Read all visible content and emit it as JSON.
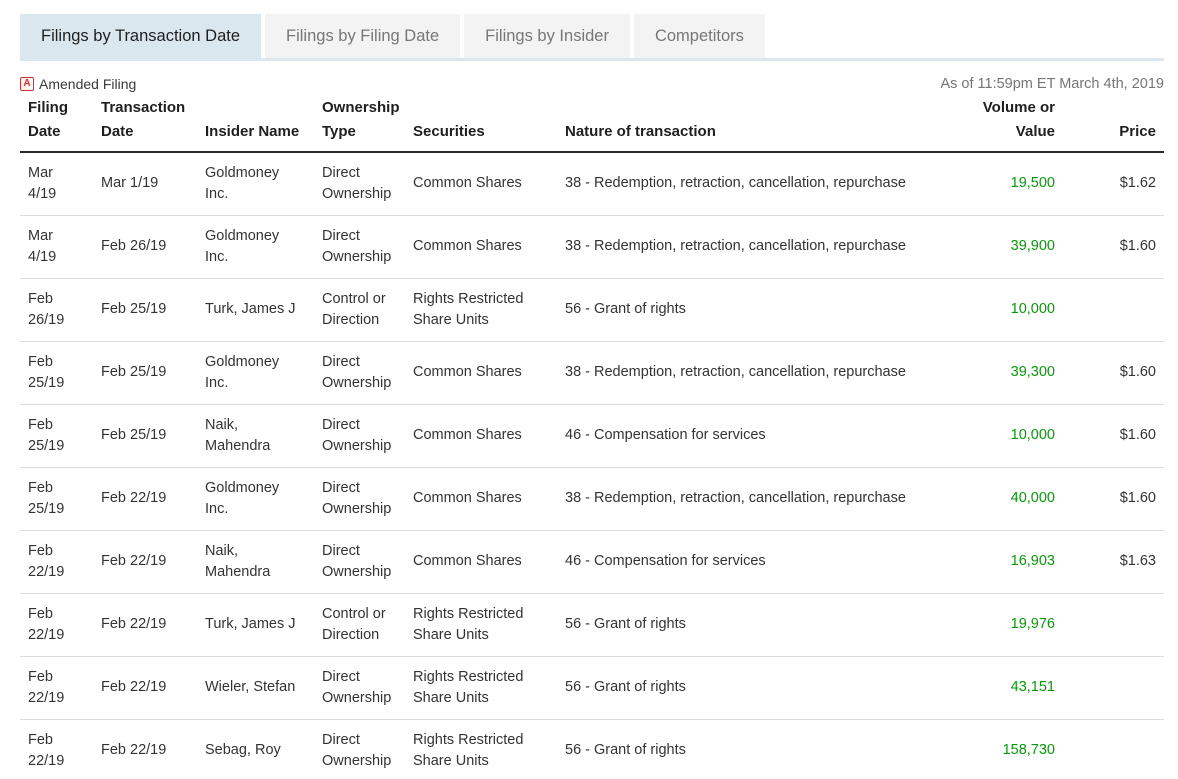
{
  "tabs": [
    {
      "label": "Filings by Transaction Date",
      "active": true
    },
    {
      "label": "Filings by Filing Date",
      "active": false
    },
    {
      "label": "Filings by Insider",
      "active": false
    },
    {
      "label": "Competitors",
      "active": false
    }
  ],
  "legend": {
    "icon_letter": "A",
    "label": "Amended Filing"
  },
  "as_of": "As of 11:59pm ET March 4th, 2019",
  "colors": {
    "volume_green": "#0b970b",
    "amended_red": "#cc3333",
    "active_tab_bg": "#dbe7ee"
  },
  "table": {
    "columns": [
      {
        "key": "filing_date",
        "label": "Filing Date"
      },
      {
        "key": "transaction_date",
        "label": "Transaction Date"
      },
      {
        "key": "insider_name",
        "label": "Insider Name"
      },
      {
        "key": "ownership_type",
        "label": "Ownership Type"
      },
      {
        "key": "securities",
        "label": "Securities"
      },
      {
        "key": "nature",
        "label": "Nature of transaction"
      },
      {
        "key": "volume",
        "label": "Volume or Value"
      },
      {
        "key": "price",
        "label": "Price"
      }
    ],
    "rows": [
      {
        "filing_date": "Mar 4/19",
        "transaction_date": "Mar 1/19",
        "insider_name": "Goldmoney Inc.",
        "ownership_type": "Direct Ownership",
        "securities": "Common Shares",
        "nature": "38 - Redemption, retraction, cancellation, repurchase",
        "volume": "19,500",
        "price": "$1.62"
      },
      {
        "filing_date": "Mar 4/19",
        "transaction_date": "Feb 26/19",
        "insider_name": "Goldmoney Inc.",
        "ownership_type": "Direct Ownership",
        "securities": "Common Shares",
        "nature": "38 - Redemption, retraction, cancellation, repurchase",
        "volume": "39,900",
        "price": "$1.60"
      },
      {
        "filing_date": "Feb 26/19",
        "transaction_date": "Feb 25/19",
        "insider_name": "Turk, James J",
        "ownership_type": "Control or Direction",
        "securities": "Rights Restricted Share Units",
        "nature": "56 - Grant of rights",
        "volume": "10,000",
        "price": ""
      },
      {
        "filing_date": "Feb 25/19",
        "transaction_date": "Feb 25/19",
        "insider_name": "Goldmoney Inc.",
        "ownership_type": "Direct Ownership",
        "securities": "Common Shares",
        "nature": "38 - Redemption, retraction, cancellation, repurchase",
        "volume": "39,300",
        "price": "$1.60"
      },
      {
        "filing_date": "Feb 25/19",
        "transaction_date": "Feb 25/19",
        "insider_name": "Naik, Mahendra",
        "ownership_type": "Direct Ownership",
        "securities": "Common Shares",
        "nature": "46 - Compensation for services",
        "volume": "10,000",
        "price": "$1.60"
      },
      {
        "filing_date": "Feb 25/19",
        "transaction_date": "Feb 22/19",
        "insider_name": "Goldmoney Inc.",
        "ownership_type": "Direct Ownership",
        "securities": "Common Shares",
        "nature": "38 - Redemption, retraction, cancellation, repurchase",
        "volume": "40,000",
        "price": "$1.60"
      },
      {
        "filing_date": "Feb 22/19",
        "transaction_date": "Feb 22/19",
        "insider_name": "Naik, Mahendra",
        "ownership_type": "Direct Ownership",
        "securities": "Common Shares",
        "nature": "46 - Compensation for services",
        "volume": "16,903",
        "price": "$1.63"
      },
      {
        "filing_date": "Feb 22/19",
        "transaction_date": "Feb 22/19",
        "insider_name": "Turk, James J",
        "ownership_type": "Control or Direction",
        "securities": "Rights Restricted Share Units",
        "nature": "56 - Grant of rights",
        "volume": "19,976",
        "price": ""
      },
      {
        "filing_date": "Feb 22/19",
        "transaction_date": "Feb 22/19",
        "insider_name": "Wieler, Stefan",
        "ownership_type": "Direct Ownership",
        "securities": "Rights Restricted Share Units",
        "nature": "56 - Grant of rights",
        "volume": "43,151",
        "price": ""
      },
      {
        "filing_date": "Feb 22/19",
        "transaction_date": "Feb 22/19",
        "insider_name": "Sebag, Roy",
        "ownership_type": "Direct Ownership",
        "securities": "Rights Restricted Share Units",
        "nature": "56 - Grant of rights",
        "volume": "158,730",
        "price": ""
      }
    ]
  }
}
